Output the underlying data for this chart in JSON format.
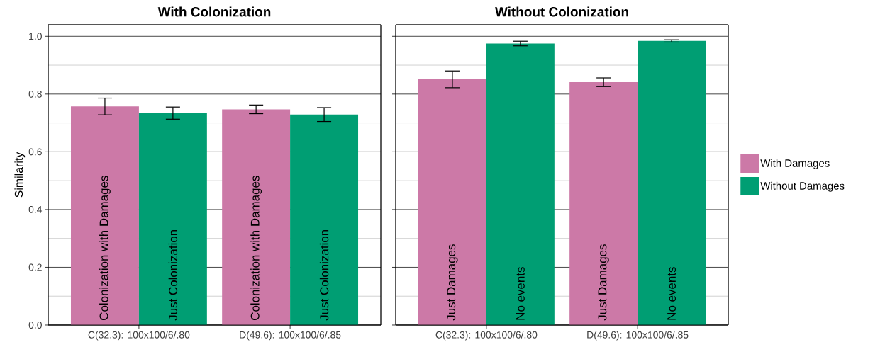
{
  "chart_data": [
    {
      "type": "bar",
      "title": "With Colonization",
      "ylabel": "Similarity",
      "categories": [
        "C(32.3): 100x100/6/.80",
        "D(49.6): 100x100/6/.85"
      ],
      "series": [
        {
          "color": "#cc79a7",
          "values": [
            0.757,
            0.747
          ],
          "errors": [
            0.029,
            0.015
          ]
        },
        {
          "color": "#009e73",
          "values": [
            0.734,
            0.729
          ],
          "errors": [
            0.021,
            0.024
          ]
        }
      ],
      "ylim": [
        0,
        1.04
      ],
      "yticks": [
        {
          "value": 0,
          "label": "0.0"
        },
        0.2,
        0.4,
        0.6,
        0.8,
        {
          "value": 1,
          "label": "1.0"
        }
      ],
      "grid": "y",
      "annotations": [
        {
          "text": "Colonization with Damages",
          "x": "C(32.3): 100x100/6/.80",
          "y": 0
        },
        {
          "text": "Just Colonization",
          "x": "C(32.3): 100x100/6/.80",
          "y": 0
        },
        {
          "text": "Colonization with Damages",
          "x": "D(49.6): 100x100/6/.85",
          "y": 0
        },
        {
          "text": "Just Colonization",
          "x": "D(49.6): 100x100/6/.85",
          "y": 0
        }
      ]
    },
    {
      "type": "bar",
      "title": "Without Colonization",
      "categories": [
        "C(32.3): 100x100/6/.80",
        "D(49.6): 100x100/6/.85"
      ],
      "series": [
        {
          "name": "With Damages",
          "color": "#cc79a7",
          "values": [
            0.851,
            0.841
          ],
          "errors": [
            0.029,
            0.015
          ]
        },
        {
          "name": "Without Damages",
          "color": "#009e73",
          "values": [
            0.975,
            0.984
          ],
          "errors": [
            0.008,
            0.004
          ]
        }
      ],
      "ylim": [
        0,
        1.04
      ],
      "yticks": [
        0,
        0.2,
        0.4,
        0.6,
        0.8,
        1
      ],
      "grid": "y",
      "legend": "right",
      "tick_labels": "x",
      "annotations": [
        {
          "text": "Just Damages",
          "x": "C(32.3): 100x100/6/.80",
          "y": 0
        },
        {
          "text": "No events",
          "x": "C(32.3): 100x100/6/.80",
          "y": 0
        },
        {
          "text": "Just Damages",
          "x": "D(49.6): 100x100/6/.85",
          "y": 0
        },
        {
          "text": "No events",
          "x": "D(49.6): 100x100/6/.85",
          "y": 0
        }
      ]
    }
  ]
}
